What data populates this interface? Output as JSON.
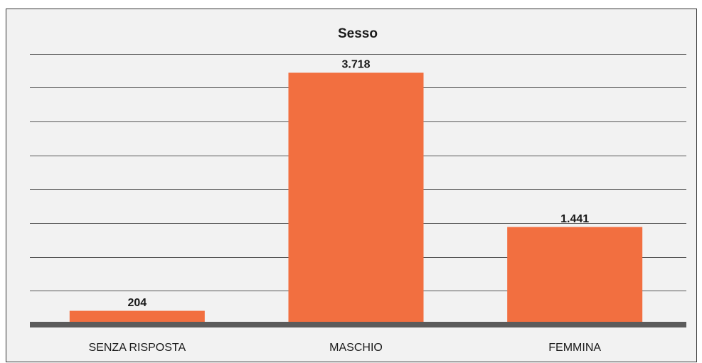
{
  "chart_data": {
    "type": "bar",
    "title": "Sesso",
    "categories": [
      "SENZA RISPOSTA",
      "MASCHIO",
      "FEMMINA"
    ],
    "values": [
      204,
      3718,
      1441
    ],
    "value_labels": [
      "204",
      "3.718",
      "1.441"
    ],
    "color": "#f26f40",
    "ylim": [
      0,
      4000
    ],
    "yticks": [
      500,
      1000,
      1500,
      2000,
      2500,
      3000,
      3500,
      4000
    ],
    "grid": true
  }
}
